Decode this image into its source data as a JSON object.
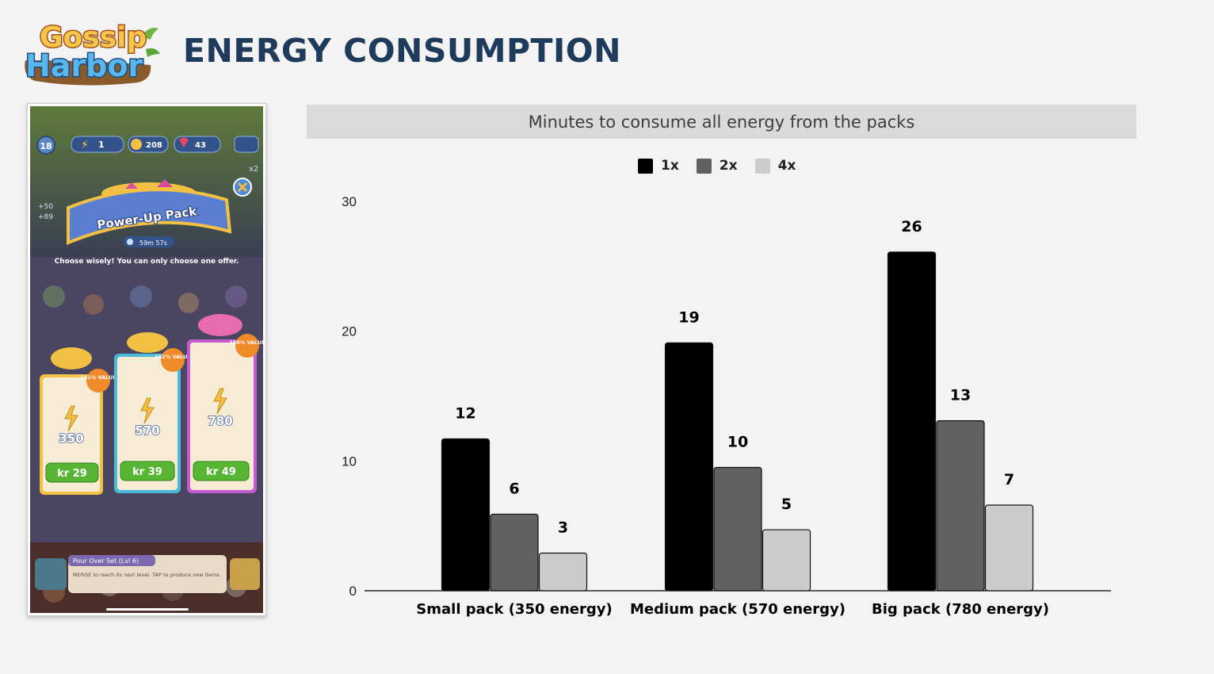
{
  "header": {
    "logo_line1": "Gossip",
    "logo_line2": "Harbor",
    "title": "ENERGY CONSUMPTION"
  },
  "screenshot": {
    "level": "18",
    "energy": "1",
    "coins": "208",
    "gems": "43",
    "multiplier": "x2",
    "banner": "Power-Up Pack",
    "timer": "59m 57s",
    "note": "Choose wisely! You can only choose one offer.",
    "side_values": [
      "+50",
      "+89"
    ],
    "offers": [
      {
        "energy": "350",
        "price": "kr 29",
        "badge": "141% VALUE",
        "color": "#f2c043"
      },
      {
        "energy": "570",
        "price": "kr 39",
        "badge": "152% VALUE",
        "color": "#4bb9d8"
      },
      {
        "energy": "780",
        "price": "kr 49",
        "badge": "156% VALUE",
        "color": "#c55bd0"
      }
    ],
    "footer_title": "Pour Over Set (Lvl 6)",
    "footer_text": "MERGE to reach its next level. TAP to produce new items."
  },
  "chart_data": {
    "type": "bar",
    "title": "Minutes to consume all energy from the packs",
    "categories": [
      "Small pack (350 energy)",
      "Medium pack (570 energy)",
      "Big pack (780 energy)"
    ],
    "series": [
      {
        "name": "1x",
        "values": [
          12,
          19,
          26
        ],
        "color": "#000000"
      },
      {
        "name": "2x",
        "values": [
          6,
          10,
          13
        ],
        "color": "#616161"
      },
      {
        "name": "4x",
        "values": [
          3,
          5,
          7
        ],
        "color": "#cccccc"
      }
    ],
    "bar_heights": [
      [
        11.7,
        19.1,
        26.1
      ],
      [
        5.9,
        9.5,
        13.1
      ],
      [
        2.9,
        4.7,
        6.6
      ]
    ],
    "yticks": [
      0,
      10,
      20,
      30
    ],
    "ylim": [
      0,
      30
    ],
    "xlabel": "",
    "ylabel": "",
    "grid": false,
    "legend": "top-center"
  }
}
